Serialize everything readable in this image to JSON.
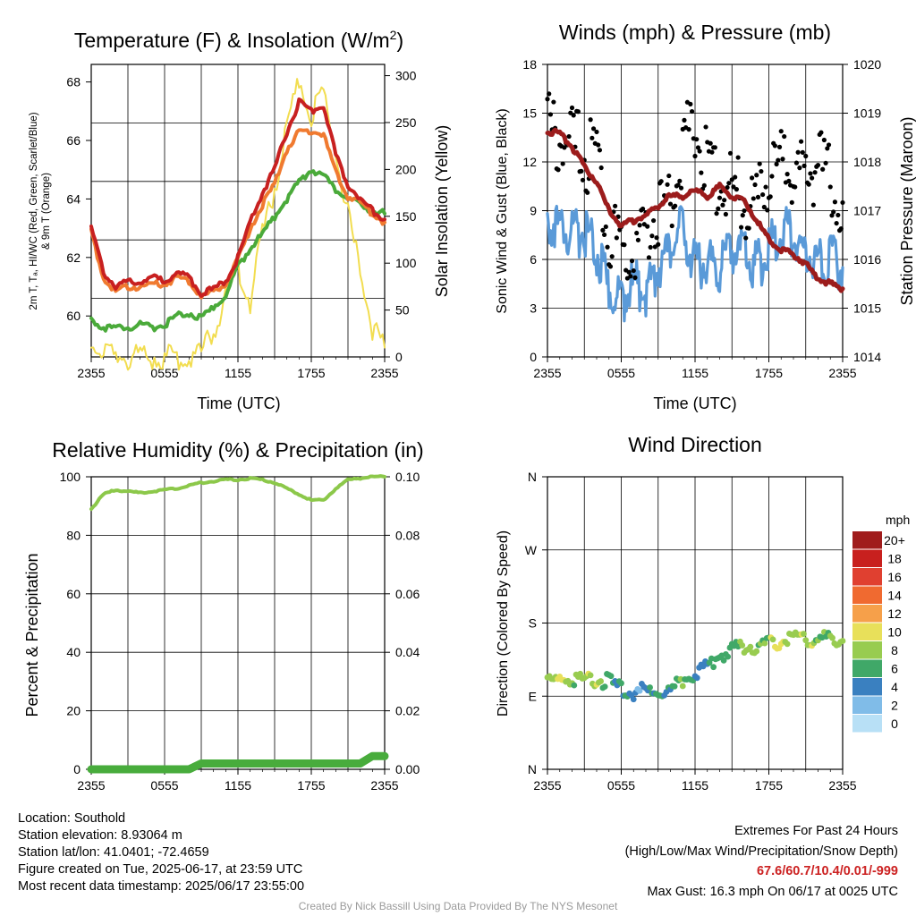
{
  "panels": {
    "temperature": {
      "title": "Temperature (F) & Insolation (W/m²)",
      "ylabel_left_line1": "2m T, Tₐ, HI/WC (Red, Green, Scarlet/Blue)",
      "ylabel_left_line2": "& 9m T (Orange)",
      "ylabel_right": "Solar Insolation (Yellow)",
      "xlabel": "Time (UTC)",
      "left_ticks": [
        "60",
        "62",
        "64",
        "66",
        "68"
      ],
      "right_ticks": [
        "0",
        "50",
        "100",
        "150",
        "200",
        "250",
        "300"
      ],
      "x_ticks": [
        "2355",
        "0555",
        "1155",
        "1755",
        "2355"
      ]
    },
    "winds": {
      "title": "Winds (mph) & Pressure (mb)",
      "ylabel_left": "Sonic Wind & Gust (Blue, Black)",
      "ylabel_right": "Station Pressure (Maroon)",
      "xlabel": "Time (UTC)",
      "left_ticks": [
        "0",
        "3",
        "6",
        "9",
        "12",
        "15",
        "18"
      ],
      "right_ticks": [
        "1014",
        "1015",
        "1016",
        "1017",
        "1018",
        "1019",
        "1020"
      ],
      "x_ticks": [
        "2355",
        "0555",
        "1155",
        "1755",
        "2355"
      ]
    },
    "humidity": {
      "title": "Relative Humidity (%) & Precipitation (in)",
      "ylabel_left": "Percent & Precipitation",
      "left_ticks": [
        "0",
        "20",
        "40",
        "60",
        "80",
        "100"
      ],
      "right_ticks": [
        "0.00",
        "0.02",
        "0.04",
        "0.06",
        "0.08",
        "0.10"
      ],
      "x_ticks": [
        "2355",
        "0555",
        "1155",
        "1755",
        "2355"
      ]
    },
    "direction": {
      "title": "Wind Direction",
      "ylabel_left": "Direction (Colored By Speed)",
      "left_ticks": [
        "N",
        "E",
        "S",
        "W",
        "N"
      ],
      "x_ticks": [
        "2355",
        "0555",
        "1155",
        "1755",
        "2355"
      ],
      "legend_title": "mph",
      "legend_labels": [
        "20+",
        "18",
        "16",
        "14",
        "12",
        "10",
        "8",
        "6",
        "4",
        "2",
        "0"
      ],
      "legend_colors": [
        "#a01c1c",
        "#c8201e",
        "#e04030",
        "#f06a30",
        "#f6a04a",
        "#e8e05a",
        "#98cc50",
        "#40a868",
        "#3a80c0",
        "#80bce8",
        "#b8e0f6"
      ]
    }
  },
  "info": {
    "location": "Location: Southold",
    "elevation": "Station elevation: 8.93064 m",
    "latlon": "Station lat/lon: 41.0401; -72.4659",
    "created": "Figure created on Tue, 2025-06-17, at 23:59 UTC",
    "recent": "Most recent data timestamp: 2025/06/17 23:55:00",
    "extremes_title": "Extremes For Past 24 Hours",
    "extremes_subtitle": "(High/Low/Max Wind/Precipitation/Snow Depth)",
    "extremes_values": "67.6/60.7/10.4/0.01/-999",
    "max_gust": "Max Gust: 16.3 mph On 06/17 at 0025 UTC",
    "credit": "Created By Nick Bassill Using Data Provided By The NYS Mesonet"
  },
  "chart_data": [
    {
      "type": "line",
      "title": "Temperature (F) & Insolation (W/m²)",
      "xlabel": "Time (UTC)",
      "ylabel": "2m T, Td, HI/WC (Red, Green, Scarlet/Blue) & 9m T (Orange)",
      "y2label": "Solar Insolation (Yellow)",
      "x_hours": [
        0,
        1,
        2,
        3,
        4,
        5,
        6,
        7,
        8,
        9,
        10,
        11,
        12,
        13,
        14,
        15,
        16,
        17,
        18,
        19,
        20,
        21,
        22,
        23,
        24
      ],
      "ylim": [
        58.6,
        68.6
      ],
      "y2lim": [
        0,
        312
      ],
      "series": [
        {
          "name": "2m T (Red)",
          "axis": "left",
          "color": "#c82020",
          "width": 4,
          "values": [
            63.0,
            61.5,
            61.0,
            61.2,
            61.2,
            61.3,
            61.2,
            61.5,
            61.3,
            60.8,
            60.9,
            61.2,
            62.0,
            63.2,
            64.2,
            65.0,
            66.3,
            67.3,
            67.0,
            67.2,
            65.5,
            64.5,
            64.0,
            63.6,
            63.3
          ]
        },
        {
          "name": "9m T (Orange)",
          "axis": "left",
          "color": "#f07a30",
          "width": 4,
          "values": [
            62.9,
            61.3,
            60.8,
            61.0,
            61.0,
            61.1,
            61.1,
            61.3,
            61.2,
            60.7,
            60.8,
            61.1,
            61.9,
            63.0,
            63.8,
            64.5,
            65.7,
            66.3,
            66.3,
            66.2,
            64.9,
            64.1,
            63.9,
            63.5,
            63.2
          ]
        },
        {
          "name": "Td (Green)",
          "axis": "left",
          "color": "#4aaa3a",
          "width": 4,
          "values": [
            59.9,
            59.6,
            59.6,
            59.6,
            59.7,
            59.6,
            59.7,
            60.0,
            60.1,
            59.9,
            60.3,
            60.7,
            61.7,
            62.3,
            62.8,
            63.4,
            64.0,
            64.6,
            65.0,
            64.8,
            64.3,
            64.0,
            63.8,
            63.6,
            63.5
          ]
        },
        {
          "name": "Solar Insolation (Yellow)",
          "axis": "right",
          "color": "#f2dd50",
          "width": 2,
          "values": [
            18,
            0,
            0,
            0,
            0,
            0,
            0,
            0,
            0,
            5,
            30,
            60,
            95,
            60,
            130,
            180,
            240,
            300,
            260,
            280,
            220,
            150,
            90,
            30,
            10
          ]
        }
      ]
    },
    {
      "type": "scatter",
      "title": "Winds (mph) & Pressure (mb)",
      "xlabel": "Time (UTC)",
      "ylabel": "Sonic Wind & Gust (Blue, Black)",
      "y2label": "Station Pressure (Maroon)",
      "x_hours": [
        0,
        1,
        2,
        3,
        4,
        5,
        6,
        7,
        8,
        9,
        10,
        11,
        12,
        13,
        14,
        15,
        16,
        17,
        18,
        19,
        20,
        21,
        22,
        23,
        24
      ],
      "ylim": [
        0,
        18
      ],
      "y2lim": [
        1014,
        1020
      ],
      "series": [
        {
          "name": "Sonic Wind (Blue)",
          "axis": "left",
          "color": "#5a9ad8",
          "values": [
            8.5,
            8.0,
            7.5,
            7.8,
            6.5,
            4.0,
            3.5,
            4.5,
            4.0,
            5.5,
            6.5,
            8.0,
            5.5,
            6.0,
            5.5,
            6.5,
            6.5,
            5.5,
            6.5,
            8.0,
            7.5,
            6.5,
            6.0,
            6.0,
            5.5
          ]
        },
        {
          "name": "Gust (Black)",
          "axis": "left",
          "color": "#000000",
          "values": [
            14.0,
            13.5,
            13.0,
            12.5,
            12.0,
            8.0,
            6.0,
            7.0,
            7.5,
            9.0,
            9.5,
            13.0,
            14.5,
            11.5,
            11.0,
            10.5,
            9.5,
            9.0,
            11.0,
            12.0,
            11.5,
            11.0,
            12.0,
            10.5,
            9.5
          ]
        },
        {
          "name": "Station Pressure (Maroon)",
          "axis": "right",
          "color": "#9c1c1c",
          "values": [
            1018.6,
            1018.6,
            1018.3,
            1017.9,
            1017.6,
            1017.0,
            1016.7,
            1016.8,
            1016.9,
            1017.1,
            1017.3,
            1017.3,
            1017.4,
            1017.3,
            1017.5,
            1017.3,
            1017.2,
            1016.8,
            1016.4,
            1016.2,
            1016.1,
            1015.9,
            1015.6,
            1015.5,
            1015.4
          ]
        }
      ]
    },
    {
      "type": "line",
      "title": "Relative Humidity (%) & Precipitation (in)",
      "ylabel": "Percent & Precipitation",
      "x_hours": [
        0,
        1,
        2,
        3,
        4,
        5,
        6,
        7,
        8,
        9,
        10,
        11,
        12,
        13,
        14,
        15,
        16,
        17,
        18,
        19,
        20,
        21,
        22,
        23,
        24
      ],
      "ylim": [
        0,
        100
      ],
      "y2lim": [
        0,
        0.1
      ],
      "series": [
        {
          "name": "Relative Humidity",
          "axis": "left",
          "color": "#8cc84a",
          "values": [
            89,
            94,
            95.5,
            95,
            94.5,
            95,
            95.5,
            96,
            97,
            98,
            98.5,
            99,
            99,
            99.5,
            99,
            98,
            96,
            94,
            92,
            92,
            96,
            99,
            99.5,
            100,
            100
          ]
        },
        {
          "name": "Precipitation",
          "axis": "right",
          "color": "#48ac3c",
          "values": [
            0,
            0,
            0,
            0,
            0,
            0,
            0,
            0,
            0,
            0.002,
            0.002,
            0.002,
            0.002,
            0.002,
            0.002,
            0.002,
            0.002,
            0.002,
            0.002,
            0.002,
            0.002,
            0.002,
            0.002,
            0.0045,
            0.0045
          ]
        }
      ]
    },
    {
      "type": "scatter",
      "title": "Wind Direction",
      "ylabel": "Direction (Colored By Speed)",
      "x_hours": [
        0,
        1,
        2,
        3,
        4,
        5,
        6,
        7,
        8,
        9,
        10,
        11,
        12,
        13,
        14,
        15,
        16,
        17,
        18,
        19,
        20,
        21,
        22,
        23,
        24
      ],
      "ylim": [
        0,
        360
      ],
      "direction_deg": [
        105,
        110,
        112,
        110,
        108,
        110,
        98,
        95,
        97,
        95,
        98,
        110,
        118,
        128,
        140,
        148,
        150,
        152,
        155,
        158,
        162,
        162,
        160,
        160,
        158
      ],
      "speed_mph": [
        9,
        9,
        8,
        9,
        8,
        6,
        4,
        4,
        4,
        5,
        6,
        6,
        5,
        5,
        6,
        7,
        7,
        8,
        8,
        9,
        9,
        8,
        8,
        7,
        7
      ]
    }
  ]
}
